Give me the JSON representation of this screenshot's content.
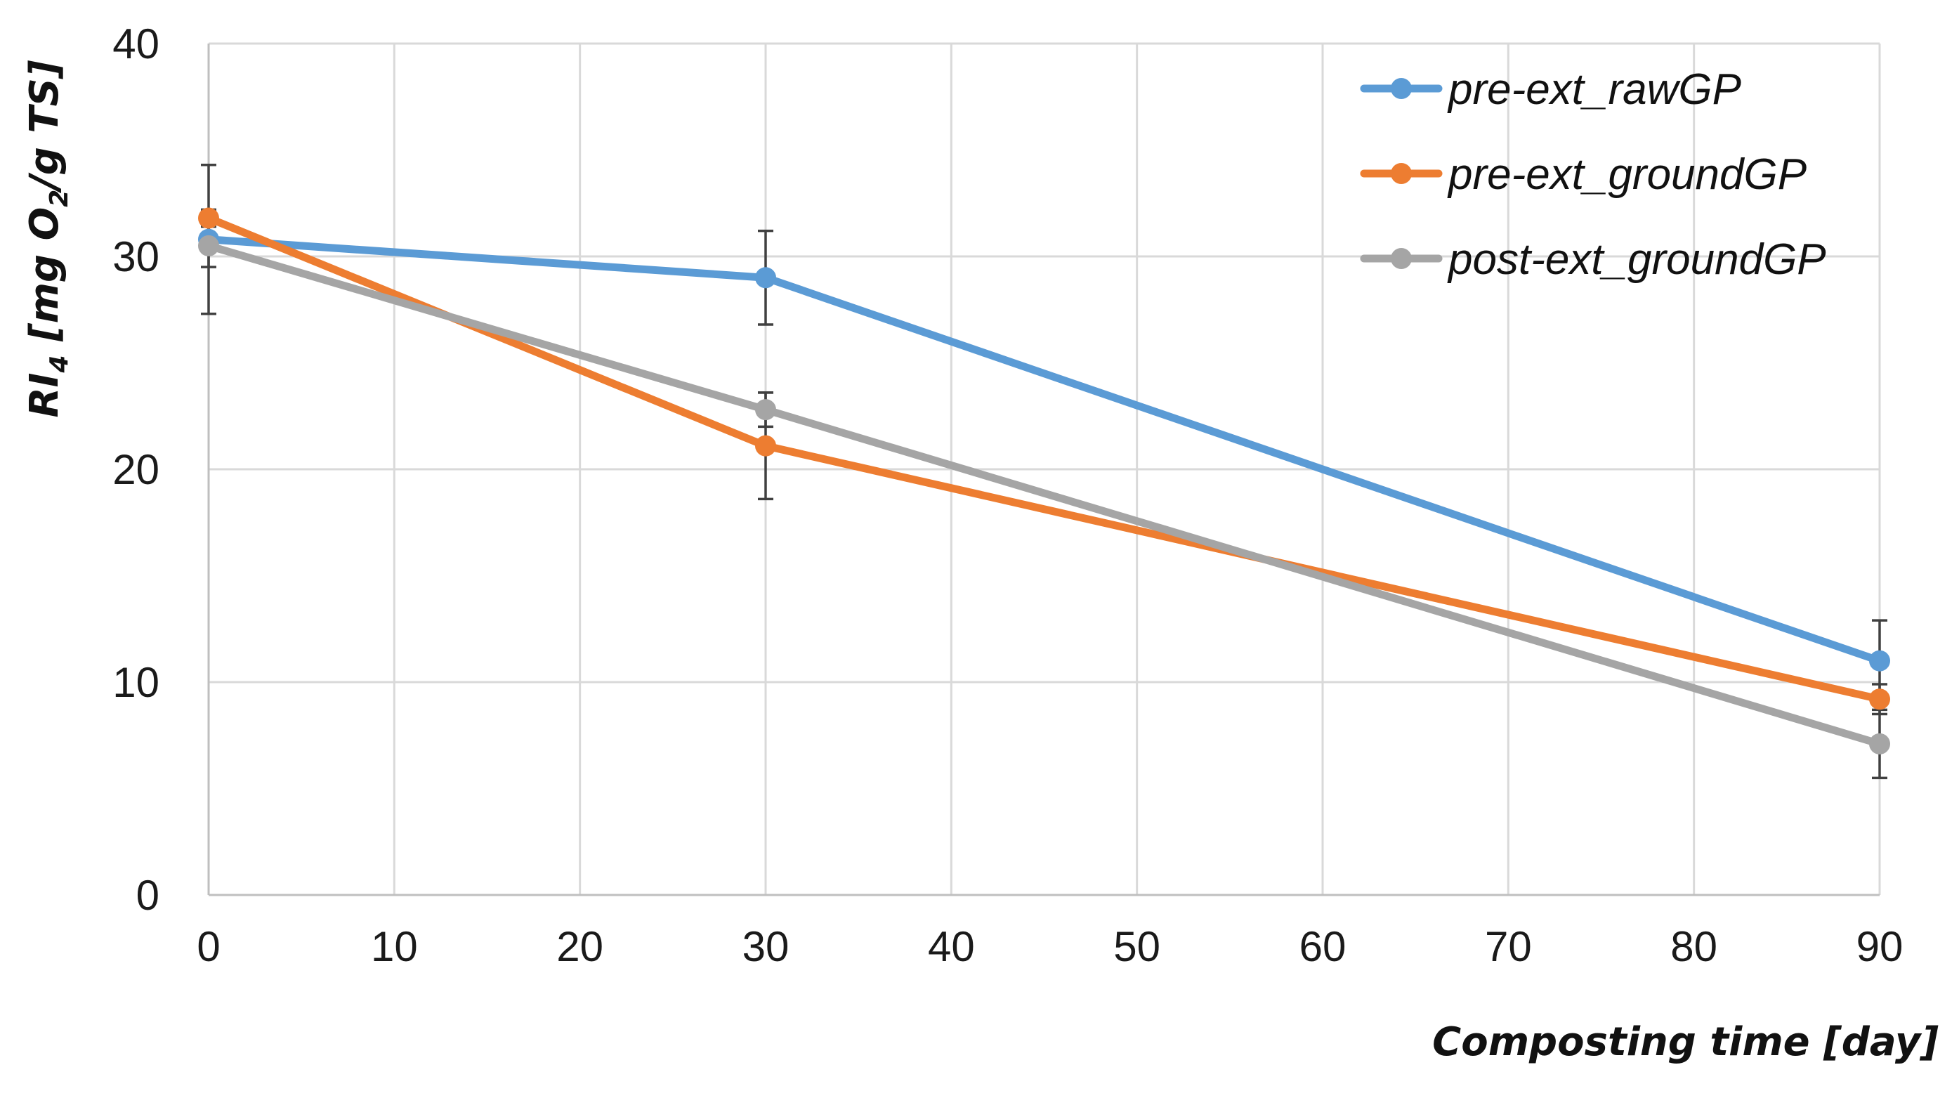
{
  "chart_data": {
    "type": "line",
    "title": "",
    "xlabel": "Composting time [day]",
    "ylabel": {
      "prefix": "RI",
      "prefix_sub": "4",
      "middle": " [mg O",
      "middle_sub": "2",
      "suffix": "/g TS]"
    },
    "xlim": [
      0,
      90
    ],
    "ylim": [
      0,
      40
    ],
    "xticks": [
      0,
      10,
      20,
      30,
      40,
      50,
      60,
      70,
      80,
      90
    ],
    "yticks": [
      0,
      10,
      20,
      30,
      40
    ],
    "grid": true,
    "legend_position": "top-right",
    "series": [
      {
        "name": "pre-ext_rawGP",
        "color": "#5b9bd5",
        "x": [
          0,
          30,
          90
        ],
        "y": [
          30.8,
          29.0,
          11.0
        ],
        "error": [
          3.5,
          2.2,
          1.9
        ]
      },
      {
        "name": "pre-ext_groundGP",
        "color": "#ed7d31",
        "x": [
          0,
          30,
          90
        ],
        "y": [
          31.8,
          21.1,
          9.2
        ],
        "error": [
          0.4,
          2.5,
          0.7
        ]
      },
      {
        "name": "post-ext_groundGP",
        "color": "#a5a5a5",
        "x": [
          0,
          30,
          90
        ],
        "y": [
          30.5,
          22.8,
          7.1
        ],
        "error": [
          1.0,
          0.8,
          1.6
        ]
      }
    ]
  }
}
